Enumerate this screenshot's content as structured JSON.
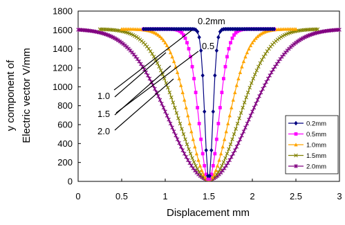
{
  "chart_data": {
    "type": "line",
    "xlabel": "Displacement mm",
    "ylabel_lines": [
      "y component of",
      "Electric vector V/mm"
    ],
    "xlim": [
      0,
      3
    ],
    "ylim": [
      0,
      1800
    ],
    "x_ticks": [
      "0",
      "0.5",
      "1",
      "1.5",
      "2",
      "2.5",
      "3"
    ],
    "y_ticks": [
      "0",
      "200",
      "400",
      "600",
      "800",
      "1000",
      "1200",
      "1400",
      "1600",
      "1800"
    ],
    "grid": false,
    "legend_position": "bottom-right",
    "series": [
      {
        "name": "0.2mm",
        "color": "#000080",
        "marker": "diamond",
        "x0": 0.75,
        "x1": 2.25,
        "center": 1.5,
        "min": 20,
        "max": 1610,
        "width": 0.2
      },
      {
        "name": "0.5mm",
        "color": "#FF00FF",
        "marker": "square",
        "x0": 0.75,
        "x1": 2.25,
        "center": 1.5,
        "min": 20,
        "max": 1610,
        "width": 0.5
      },
      {
        "name": "1.0mm",
        "color": "#FFA500",
        "marker": "triangle",
        "x0": 0.5,
        "x1": 2.5,
        "center": 1.5,
        "min": 20,
        "max": 1610,
        "width": 1.0
      },
      {
        "name": "1.5mm",
        "color": "#808000",
        "marker": "x",
        "x0": 0.25,
        "x1": 2.75,
        "center": 1.5,
        "min": 20,
        "max": 1610,
        "width": 1.5
      },
      {
        "name": "2.0mm",
        "color": "#800080",
        "marker": "star",
        "x0": 0.0,
        "x1": 3.0,
        "center": 1.5,
        "min": 20,
        "max": 1610,
        "width": 2.0
      }
    ],
    "annotations": [
      {
        "text": "0.2mm"
      },
      {
        "text": "0.5"
      },
      {
        "text": "1.0"
      },
      {
        "text": "1.5"
      },
      {
        "text": "2.0"
      }
    ]
  }
}
